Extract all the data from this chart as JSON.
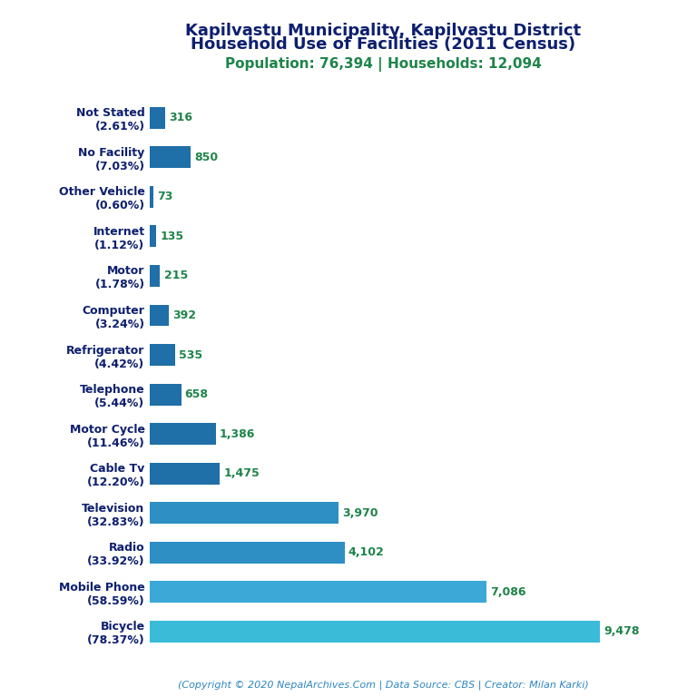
{
  "title_line1": "Kapilvastu Municipality, Kapilvastu District",
  "title_line2": "Household Use of Facilities (2011 Census)",
  "subtitle": "Population: 76,394 | Households: 12,094",
  "footer": "(Copyright © 2020 NepalArchives.Com | Data Source: CBS | Creator: Milan Karki)",
  "categories": [
    "Not Stated\n(2.61%)",
    "No Facility\n(7.03%)",
    "Other Vehicle\n(0.60%)",
    "Internet\n(1.12%)",
    "Motor\n(1.78%)",
    "Computer\n(3.24%)",
    "Refrigerator\n(4.42%)",
    "Telephone\n(5.44%)",
    "Motor Cycle\n(11.46%)",
    "Cable Tv\n(12.20%)",
    "Television\n(32.83%)",
    "Radio\n(33.92%)",
    "Mobile Phone\n(58.59%)",
    "Bicycle\n(78.37%)"
  ],
  "values": [
    316,
    850,
    73,
    135,
    215,
    392,
    535,
    658,
    1386,
    1475,
    3970,
    4102,
    7086,
    9478
  ],
  "value_labels": [
    "316",
    "850",
    "73",
    "135",
    "215",
    "392",
    "535",
    "658",
    "1,386",
    "1,475",
    "3,970",
    "4,102",
    "7,086",
    "9,478"
  ],
  "bar_colors": [
    "#1f6fa8",
    "#1f6fa8",
    "#1f6fa8",
    "#1f6fa8",
    "#1f6fa8",
    "#1f6fa8",
    "#1f6fa8",
    "#1f6fa8",
    "#1f6fa8",
    "#1f6fa8",
    "#2e8fc4",
    "#2e8fc4",
    "#3ba8d8",
    "#3abbd8"
  ],
  "title_color": "#0d1f6e",
  "subtitle_color": "#1e8449",
  "value_color": "#1e8449",
  "footer_color": "#2e86c1",
  "background_color": "#ffffff",
  "xlim": [
    0,
    10500
  ]
}
